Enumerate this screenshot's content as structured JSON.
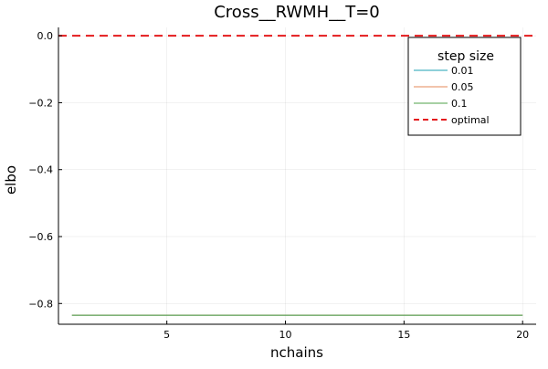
{
  "chart_data": {
    "type": "line",
    "title": "Cross__RWMH__T=0",
    "xlabel": "nchains",
    "ylabel": "elbo",
    "xlim": [
      0.43,
      20.57
    ],
    "ylim": [
      -0.862,
      0.025
    ],
    "xticks": [
      5,
      10,
      15,
      20
    ],
    "xtick_labels": [
      "5",
      "10",
      "15",
      "20"
    ],
    "yticks": [
      0.0,
      -0.2,
      -0.4,
      -0.6,
      -0.8
    ],
    "ytick_labels": [
      "0.0",
      "−0.2",
      "−0.4",
      "−0.6",
      "−0.8"
    ],
    "grid": true,
    "legend": {
      "title": "step size",
      "placement": "top-right"
    },
    "series": [
      {
        "name": "0.01",
        "x": [
          1,
          20
        ],
        "y": [
          -0.835,
          -0.835
        ],
        "color": "#1ca2b3",
        "style": "solid"
      },
      {
        "name": "0.05",
        "x": [
          1,
          20
        ],
        "y": [
          -0.835,
          -0.835
        ],
        "color": "#e58a5a",
        "style": "solid"
      },
      {
        "name": "0.1",
        "x": [
          1,
          20
        ],
        "y": [
          -0.835,
          -0.835
        ],
        "color": "#4fa04a",
        "style": "solid"
      }
    ],
    "reference_line": {
      "name": "optimal",
      "y": 0.0,
      "color": "#e41a1c",
      "style": "dashed"
    }
  }
}
